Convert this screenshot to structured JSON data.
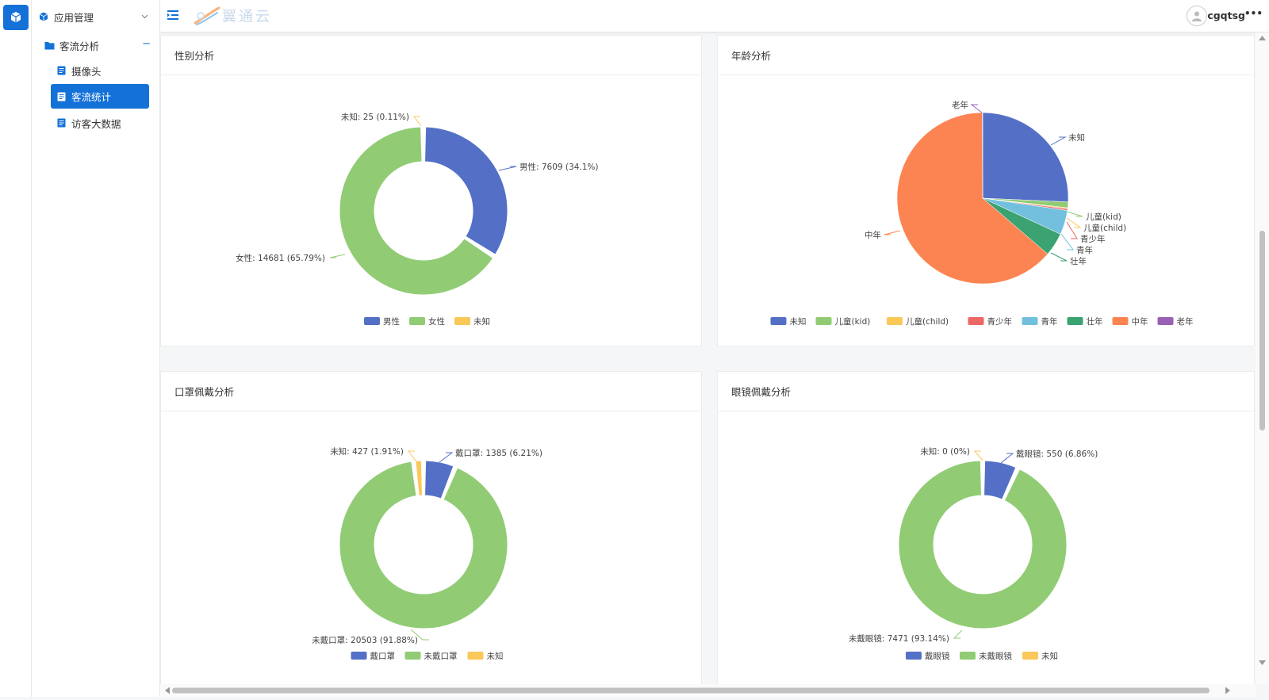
{
  "sidebar": {
    "menu_title": "应用管理",
    "group_label": "客流分析",
    "group_toggle": "−",
    "items": [
      {
        "label": "摄像头"
      },
      {
        "label": "客流统计"
      },
      {
        "label": "访客大数据"
      }
    ]
  },
  "header": {
    "brand": "翼通云",
    "username": "cgqtsg",
    "more": "•••"
  },
  "colors": {
    "accent": "#1471d8",
    "blue": "#5470c6",
    "green": "#91cc75",
    "yellow": "#fac858",
    "red": "#ee6666",
    "cyan": "#73c0de",
    "teal": "#3ba272",
    "orange": "#fc8452",
    "purple": "#9a60b4"
  },
  "charts": {
    "gender": {
      "title": "性别分析"
    },
    "age": {
      "title": "年龄分析"
    },
    "mask": {
      "title": "口罩佩戴分析"
    },
    "glasses": {
      "title": "眼镜佩戴分析"
    }
  },
  "chart_data": [
    {
      "type": "pie",
      "variant": "donut",
      "title": "性别分析",
      "legend": "bottom-center",
      "slices": [
        {
          "name": "男性",
          "value": 7609,
          "percent": 34.1,
          "label": "男性: 7609 (34.1%)",
          "color": "#5470c6"
        },
        {
          "name": "女性",
          "value": 14681,
          "percent": 65.79,
          "label": "女性: 14681 (65.79%)",
          "color": "#91cc75"
        },
        {
          "name": "未知",
          "value": 25,
          "percent": 0.11,
          "label": "未知: 25 (0.11%)",
          "color": "#fac858"
        }
      ]
    },
    {
      "type": "pie",
      "title": "年龄分析",
      "legend": "bottom-center",
      "slices": [
        {
          "name": "未知",
          "value": 25.7,
          "label": "未知",
          "color": "#5470c6"
        },
        {
          "name": "儿童(kid)",
          "value": 1.1,
          "label": "儿童(kid)",
          "color": "#91cc75"
        },
        {
          "name": "儿童(child)",
          "value": 0.2,
          "label": "儿童(child)",
          "color": "#fac858"
        },
        {
          "name": "青少年",
          "value": 0.3,
          "label": "青少年",
          "color": "#ee6666"
        },
        {
          "name": "青年",
          "value": 4.6,
          "label": "青年",
          "color": "#73c0de"
        },
        {
          "name": "壮年",
          "value": 4.4,
          "label": "壮年",
          "color": "#3ba272"
        },
        {
          "name": "中年",
          "value": 63.6,
          "label": "中年",
          "color": "#fc8452"
        },
        {
          "name": "老年",
          "value": 0.1,
          "label": "老年",
          "color": "#9a60b4"
        }
      ]
    },
    {
      "type": "pie",
      "variant": "donut",
      "title": "口罩佩戴分析",
      "legend": "bottom-center",
      "slices": [
        {
          "name": "戴口罩",
          "value": 1385,
          "percent": 6.21,
          "label": "戴口罩: 1385 (6.21%)",
          "color": "#5470c6"
        },
        {
          "name": "未戴口罩",
          "value": 20503,
          "percent": 91.88,
          "label": "未戴口罩: 20503 (91.88%)",
          "color": "#91cc75"
        },
        {
          "name": "未知",
          "value": 427,
          "percent": 1.91,
          "label": "未知: 427 (1.91%)",
          "color": "#fac858"
        }
      ]
    },
    {
      "type": "pie",
      "variant": "donut",
      "title": "眼镜佩戴分析",
      "legend": "bottom-center",
      "slices": [
        {
          "name": "戴眼镜",
          "value": 550,
          "percent": 6.86,
          "label": "戴眼镜: 550 (6.86%)",
          "color": "#5470c6"
        },
        {
          "name": "未戴眼镜",
          "value": 7471,
          "percent": 93.14,
          "label": "未戴眼镜: 7471 (93.14%)",
          "color": "#91cc75"
        },
        {
          "name": "未知",
          "value": 0,
          "percent": 0,
          "label": "未知: 0 (0%)",
          "color": "#fac858"
        }
      ]
    }
  ]
}
